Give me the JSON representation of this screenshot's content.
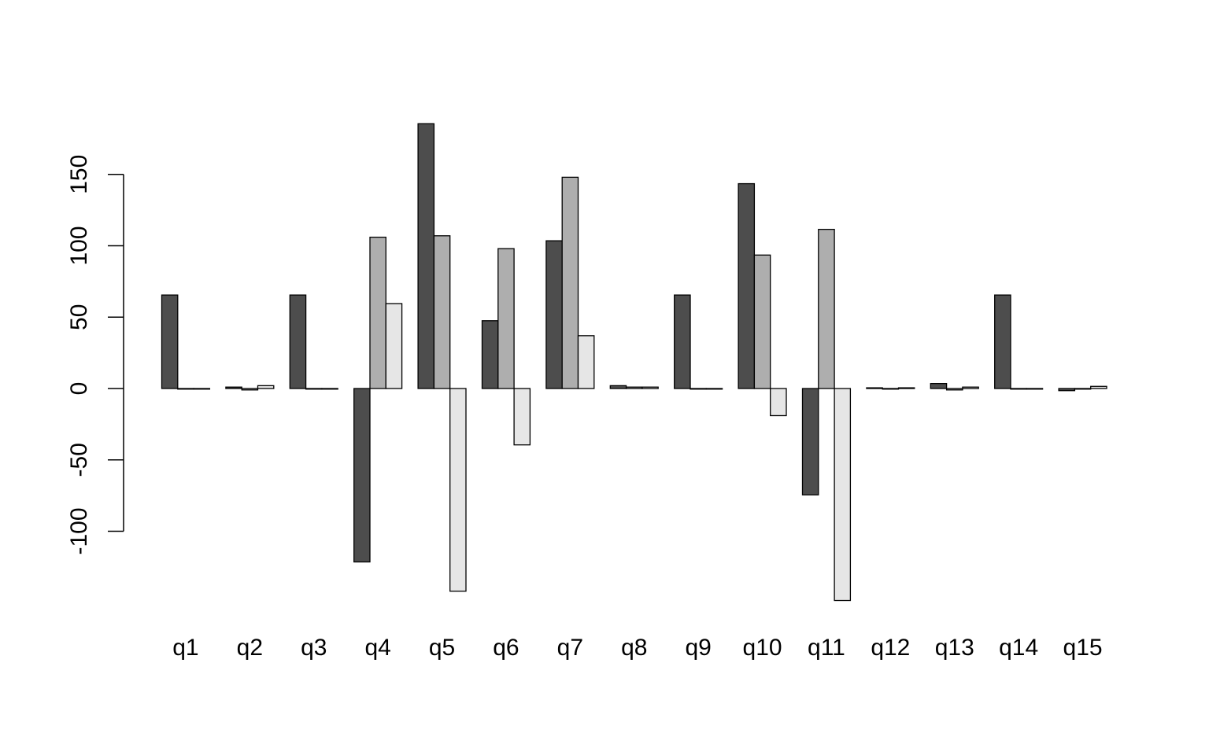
{
  "chart_data": {
    "type": "bar",
    "title": "",
    "xlabel": "",
    "ylabel": "",
    "categories": [
      "q1",
      "q2",
      "q3",
      "q4",
      "q5",
      "q6",
      "q7",
      "q8",
      "q9",
      "q10",
      "q11",
      "q12",
      "q13",
      "q14",
      "q15"
    ],
    "series": [
      {
        "color": "#4d4d4d",
        "values": [
          65.5,
          1,
          65.5,
          -121.5,
          185.5,
          47.5,
          103.5,
          2,
          65.5,
          143.5,
          -74.5,
          0.5,
          3.5,
          65.5,
          -1.5
        ]
      },
      {
        "color": "#aeaeae",
        "values": [
          0,
          -1,
          0,
          106,
          107,
          98,
          148,
          1,
          0,
          93.5,
          111.5,
          0,
          -1,
          0,
          0
        ]
      },
      {
        "color": "#e6e6e6",
        "values": [
          0,
          2,
          0,
          59.5,
          -142,
          -39.5,
          37,
          1,
          0,
          -19,
          -148.5,
          0.5,
          1,
          0,
          1.5
        ]
      }
    ],
    "yticks": [
      -100,
      -50,
      0,
      50,
      100,
      150
    ],
    "ytick_labels": [
      "-100",
      "-50",
      "0",
      "50",
      "100",
      "150"
    ],
    "ylim": [
      -160,
      200
    ],
    "grid": false,
    "legend": "none"
  }
}
